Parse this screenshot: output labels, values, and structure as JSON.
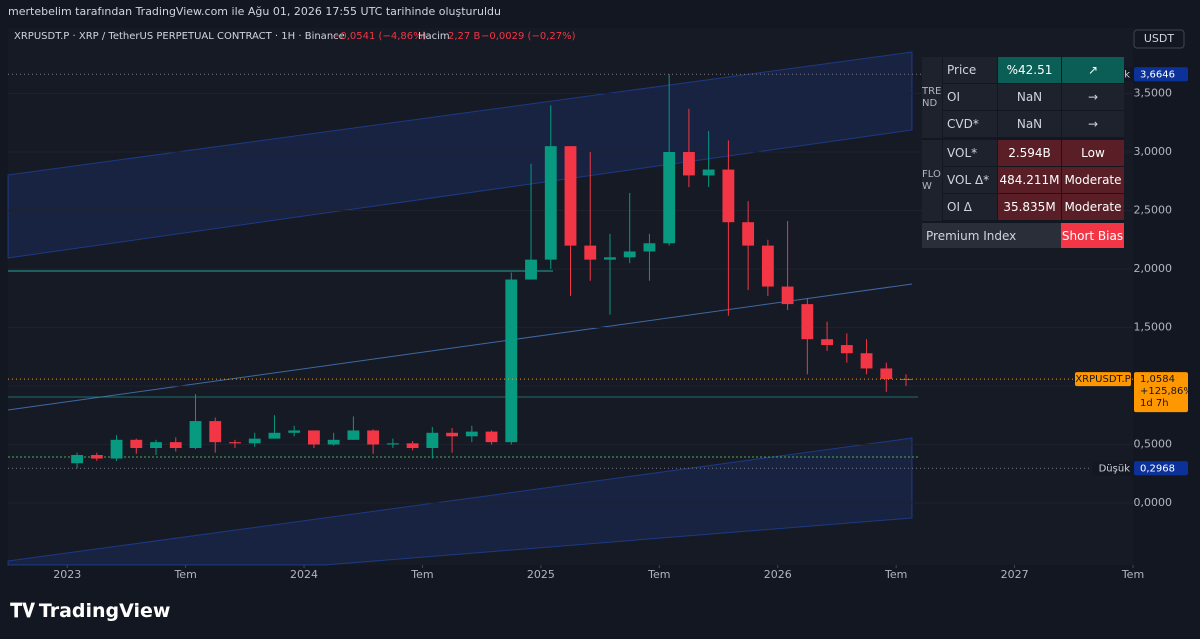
{
  "caption": "mertebelim tarafından TradingView.com ile Ağu 01, 2026 17:55 UTC tarihinde oluşturuldu",
  "logo": "TradingView",
  "chart_data": {
    "type": "candlestick",
    "symbol_line": "XRPUSDT.P · XRP / TetherUS PERPETUAL CONTRACT · 1H · Binance",
    "change": "−0,0541 (−4,86%)",
    "volume_label": "Hacim",
    "volume": "2,27 B",
    "volume_change": "−0,0029 (−0,27%)",
    "currency_button": "USDT",
    "up_color": "#089981",
    "down_color": "#f23645",
    "x": [
      "2023-01",
      "2023-02",
      "2023-03",
      "2023-04",
      "2023-05",
      "2023-06",
      "2023-07",
      "2023-08",
      "2023-09",
      "2023-10",
      "2023-11",
      "2023-12",
      "2024-01",
      "2024-02",
      "2024-03",
      "2024-04",
      "2024-05",
      "2024-06",
      "2024-07",
      "2024-08",
      "2024-09",
      "2024-10",
      "2024-11",
      "2024-12",
      "2025-01",
      "2025-02",
      "2025-03",
      "2025-04",
      "2025-05",
      "2025-06",
      "2025-07",
      "2025-08",
      "2025-09",
      "2025-10",
      "2025-11",
      "2025-12",
      "2026-01",
      "2026-02",
      "2026-03",
      "2026-04",
      "2026-05",
      "2026-06",
      "2026-07"
    ],
    "open": [
      0.34,
      0.41,
      0.38,
      0.54,
      0.47,
      0.52,
      0.47,
      0.7,
      0.52,
      0.51,
      0.55,
      0.6,
      0.62,
      0.5,
      0.54,
      0.62,
      0.5,
      0.51,
      0.47,
      0.6,
      0.57,
      0.61,
      0.52,
      1.91,
      2.08,
      3.05,
      2.2,
      2.08,
      2.1,
      2.15,
      2.22,
      3.0,
      2.8,
      2.85,
      2.4,
      2.2,
      1.85,
      1.7,
      1.4,
      1.35,
      1.28,
      1.15,
      1.06
    ],
    "high": [
      0.43,
      0.43,
      0.58,
      0.55,
      0.54,
      0.56,
      0.93,
      0.73,
      0.54,
      0.6,
      0.75,
      0.66,
      0.62,
      0.6,
      0.74,
      0.63,
      0.55,
      0.53,
      0.65,
      0.64,
      0.66,
      0.62,
      1.97,
      2.9,
      3.4,
      3.05,
      3.0,
      2.3,
      2.65,
      2.3,
      3.6646,
      3.37,
      3.18,
      3.1,
      2.58,
      2.25,
      2.41,
      1.75,
      1.55,
      1.45,
      1.4,
      1.2,
      1.1
    ],
    "low": [
      0.2968,
      0.36,
      0.36,
      0.42,
      0.41,
      0.44,
      0.46,
      0.43,
      0.47,
      0.48,
      0.55,
      0.57,
      0.47,
      0.49,
      0.54,
      0.42,
      0.47,
      0.45,
      0.38,
      0.43,
      0.52,
      0.5,
      0.5,
      1.91,
      2.0,
      1.77,
      1.9,
      1.61,
      2.05,
      1.9,
      2.2,
      2.7,
      2.7,
      1.6,
      1.82,
      1.77,
      1.65,
      1.1,
      1.3,
      1.2,
      1.1,
      0.95,
      1.0
    ],
    "close": [
      0.41,
      0.38,
      0.54,
      0.47,
      0.52,
      0.47,
      0.7,
      0.52,
      0.51,
      0.55,
      0.6,
      0.62,
      0.5,
      0.54,
      0.62,
      0.5,
      0.51,
      0.47,
      0.6,
      0.57,
      0.61,
      0.52,
      1.91,
      2.08,
      3.05,
      2.2,
      2.08,
      2.1,
      2.15,
      2.22,
      3.0,
      2.8,
      2.85,
      2.4,
      2.2,
      1.85,
      1.7,
      1.4,
      1.35,
      1.28,
      1.15,
      1.06,
      1.0584
    ],
    "xlim": [
      "2022-10",
      "2027-07"
    ],
    "xticks": [
      {
        "value": "2023-01",
        "label": "2023"
      },
      {
        "value": "2023-07",
        "label": "Tem"
      },
      {
        "value": "2024-01",
        "label": "2024"
      },
      {
        "value": "2024-07",
        "label": "Tem"
      },
      {
        "value": "2025-01",
        "label": "2025"
      },
      {
        "value": "2025-07",
        "label": "Tem"
      },
      {
        "value": "2026-01",
        "label": "2026"
      },
      {
        "value": "2026-07",
        "label": "Tem"
      },
      {
        "value": "2027-01",
        "label": "2027"
      },
      {
        "value": "2027-07",
        "label": "Tem"
      }
    ],
    "ylim": [
      -0.53,
      4.06
    ],
    "yticks": [
      {
        "value": 0,
        "label": "0,0000"
      },
      {
        "value": 0.5,
        "label": "0,5000"
      },
      {
        "value": 1,
        "label": "1,0000"
      },
      {
        "value": 1.5,
        "label": "1,5000"
      },
      {
        "value": 2,
        "label": "2,0000"
      },
      {
        "value": 2.5,
        "label": "2,5000"
      },
      {
        "value": 3,
        "label": "3,0000"
      },
      {
        "value": 3.5,
        "label": "3,5000"
      }
    ],
    "last_price": {
      "value": 1.0584,
      "label": "1,0584",
      "tag": "XRPUSDT.P",
      "change": "+125,86%",
      "countdown": "1d 7h"
    },
    "high_marker": {
      "value": 3.6646,
      "label": "3,6646",
      "tag": "Yüksek"
    },
    "low_marker": {
      "value": 0.2968,
      "label": "0,2968",
      "tag": "Düşük"
    }
  },
  "indicator_table": {
    "groups": [
      {
        "label": "TREND",
        "rows": [
          [
            "Price",
            "%42.51",
            "↗"
          ],
          [
            "OI",
            "NaN",
            "→"
          ],
          [
            "CVD*",
            "NaN",
            "→"
          ]
        ]
      },
      {
        "label": "FLOW",
        "rows": [
          [
            "VOL*",
            "2.594B",
            "Low"
          ],
          [
            "VOL Δ*",
            "484.211M",
            "Moderate"
          ],
          [
            "OI Δ",
            "35.835M",
            "Moderate"
          ]
        ]
      }
    ],
    "footer": [
      "Premium Index",
      "Short Bias"
    ]
  }
}
